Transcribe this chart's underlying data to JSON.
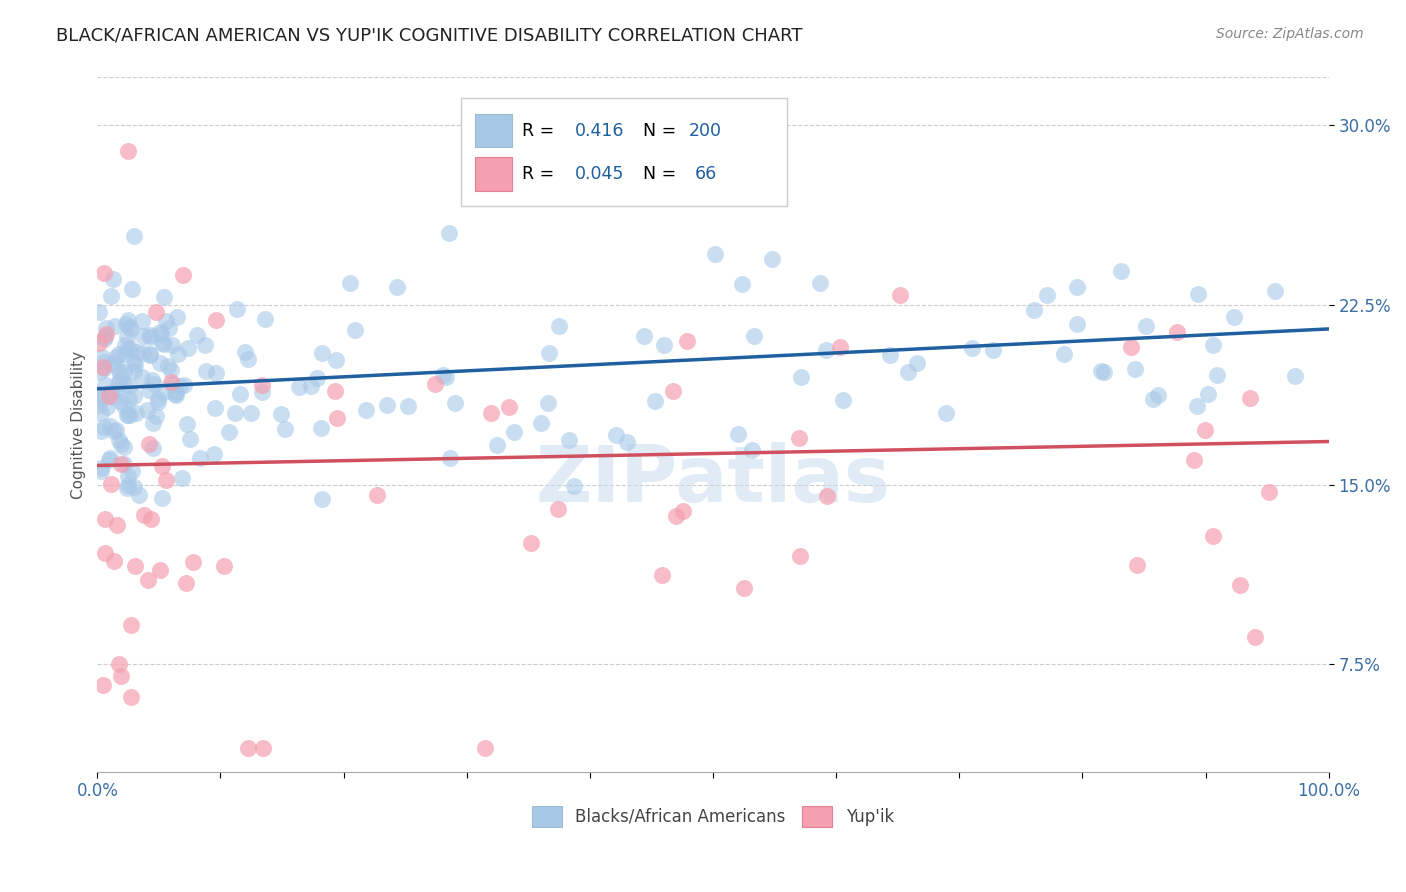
{
  "title": "BLACK/AFRICAN AMERICAN VS YUP'IK COGNITIVE DISABILITY CORRELATION CHART",
  "source": "Source: ZipAtlas.com",
  "ylabel": "Cognitive Disability",
  "xlim": [
    0,
    1.0
  ],
  "ylim": [
    0.03,
    0.32
  ],
  "yticks": [
    0.075,
    0.15,
    0.225,
    0.3
  ],
  "ytick_labels": [
    "7.5%",
    "15.0%",
    "22.5%",
    "30.0%"
  ],
  "xtick_labels": [
    "0.0%",
    "100.0%"
  ],
  "blue_R": 0.416,
  "blue_N": 200,
  "pink_R": 0.045,
  "pink_N": 66,
  "blue_color": "#A8C8E8",
  "pink_color": "#F4A0B0",
  "blue_line_color": "#2060A0",
  "pink_line_color": "#D05060",
  "legend_label_blue": "Blacks/African Americans",
  "legend_label_pink": "Yup'ik",
  "watermark": "ZIPatlas",
  "background_color": "#FFFFFF",
  "title_fontsize": 13,
  "axis_label_fontsize": 11,
  "tick_fontsize": 12,
  "source_fontsize": 10,
  "blue_line_start_y": 0.19,
  "blue_line_end_y": 0.215,
  "pink_line_start_y": 0.158,
  "pink_line_end_y": 0.168
}
